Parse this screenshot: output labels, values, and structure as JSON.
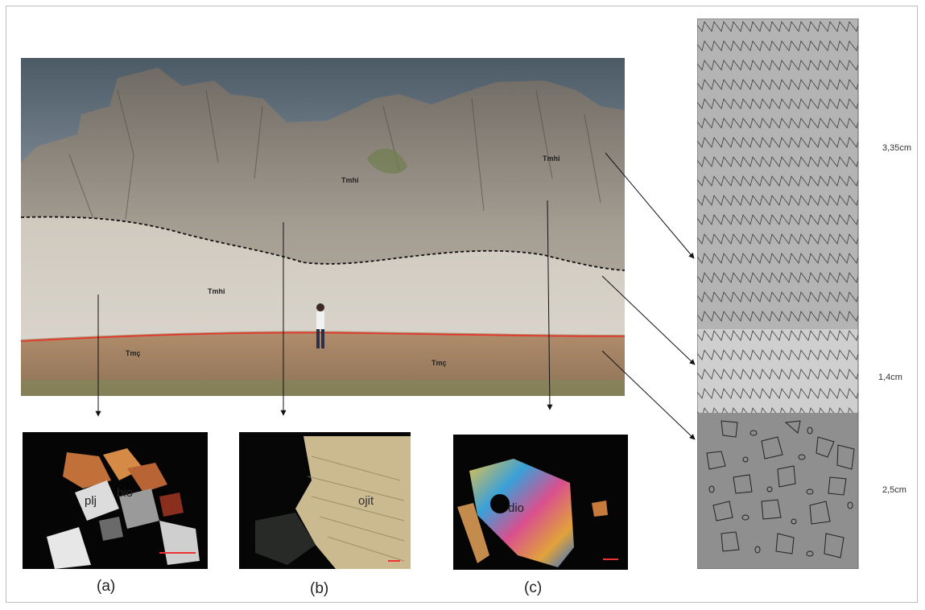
{
  "figure": {
    "outcrop_labels": {
      "upper_left": "Tmhi",
      "upper_right": "Tmhi",
      "middle": "Tmhi",
      "lower_left": "Tmç",
      "lower_right": "Tmç"
    },
    "micrographs": [
      {
        "caption": "(a)",
        "minerals": [
          "plj",
          "bio"
        ]
      },
      {
        "caption": "(b)",
        "minerals": [
          "ojit"
        ]
      },
      {
        "caption": "(c)",
        "minerals": [
          "dio"
        ]
      }
    ],
    "column": {
      "units": [
        {
          "thickness": "3,35cm",
          "pattern": "chevron"
        },
        {
          "thickness": "1,4cm",
          "pattern": "chevron-light"
        },
        {
          "thickness": "2,5cm",
          "pattern": "clasts"
        }
      ]
    },
    "colors": {
      "contact_line": "#e8322a",
      "upper_unit": "#b4b4b4",
      "middle_unit": "#cfcfcf",
      "lower_unit": "#8f8f8f"
    }
  }
}
